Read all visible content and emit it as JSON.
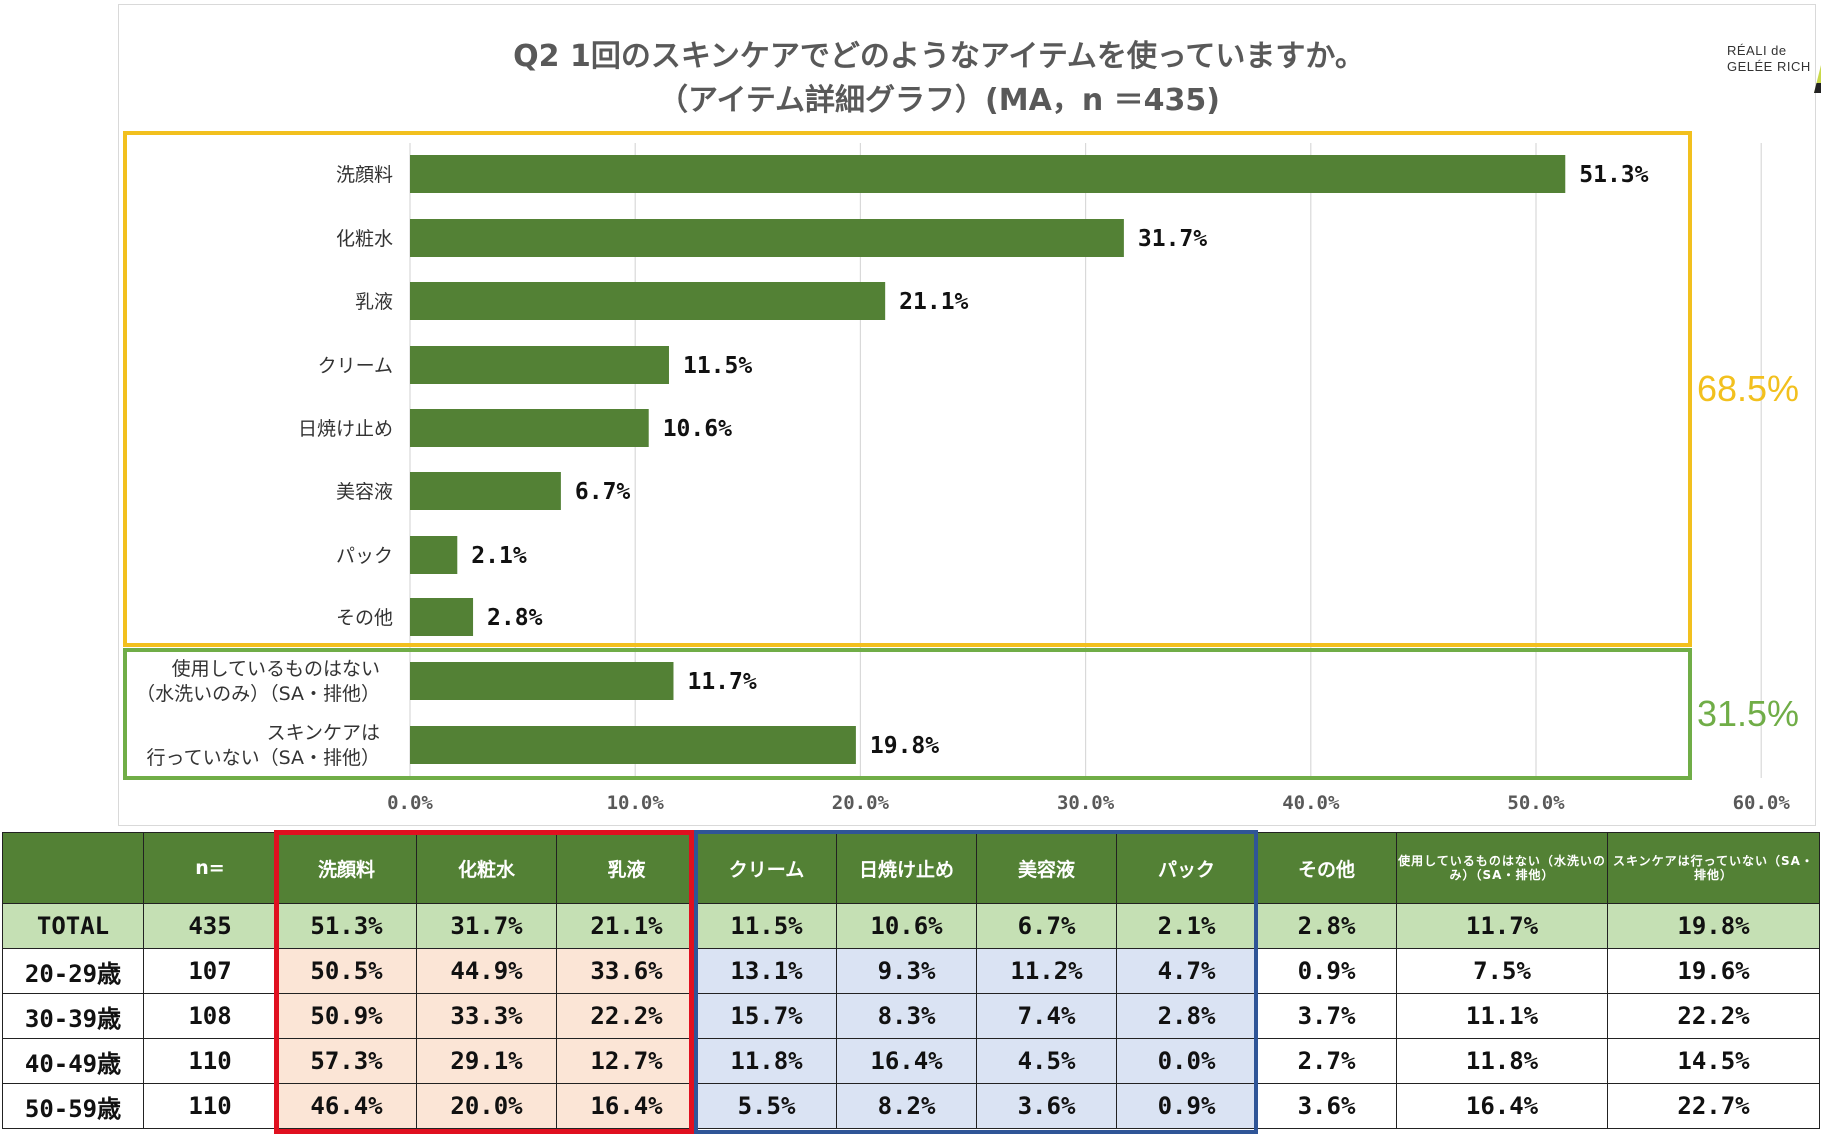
{
  "title": {
    "line1": "Q2 1回のスキンケアでどのようなアイテムを使っていますか。",
    "line2": "（アイテム詳細グラフ）(MA，n ＝435)"
  },
  "logo": {
    "line1": "RÉALI de",
    "line2": "GELÉE RICH"
  },
  "colors": {
    "bar": "#538135",
    "group_main": "#f2c01e",
    "group_none": "#70ad47",
    "header": "#538135",
    "total_row": "#c5e0b4",
    "red_box": "#e0101f",
    "blue_box": "#2f5597",
    "red_fill": "#fbe5d6",
    "blue_fill": "#dae3f3"
  },
  "chart_data": {
    "type": "bar",
    "orientation": "horizontal",
    "categories": [
      "洗顔料",
      "化粧水",
      "乳液",
      "クリーム",
      "日焼け止め",
      "美容液",
      "パック",
      "その他",
      "使用しているものはない|（水洗いのみ）（SA・排他）",
      "スキンケアは|行っていない（SA・排他）"
    ],
    "values": [
      51.3,
      31.7,
      21.1,
      11.5,
      10.6,
      6.7,
      2.1,
      2.8,
      11.7,
      19.8
    ],
    "value_labels": [
      "51.3%",
      "31.7%",
      "21.1%",
      "11.5%",
      "10.6%",
      "6.7%",
      "2.1%",
      "2.8%",
      "11.7%",
      "19.8%"
    ],
    "xlim": [
      0,
      60
    ],
    "xticks": [
      "0.0%",
      "10.0%",
      "20.0%",
      "30.0%",
      "40.0%",
      "50.0%",
      "60.0%"
    ],
    "grid": "vertical",
    "groups": [
      {
        "label": "68.5%",
        "from": 0,
        "to": 7,
        "color": "#f2c01e"
      },
      {
        "label": "31.5%",
        "from": 8,
        "to": 9,
        "color": "#70ad47"
      }
    ]
  },
  "table": {
    "headers": [
      "",
      "n=",
      "洗顔料",
      "化粧水",
      "乳液",
      "クリーム",
      "日焼け止め",
      "美容液",
      "パック",
      "その他",
      "使用しているものはない（水洗いのみ）（SA・排他）",
      "スキンケアは行っていない（SA・排他）"
    ],
    "rows": [
      [
        "TOTAL",
        "435",
        "51.3%",
        "31.7%",
        "21.1%",
        "11.5%",
        "10.6%",
        "6.7%",
        "2.1%",
        "2.8%",
        "11.7%",
        "19.8%"
      ],
      [
        "20-29歳",
        "107",
        "50.5%",
        "44.9%",
        "33.6%",
        "13.1%",
        "9.3%",
        "11.2%",
        "4.7%",
        "0.9%",
        "7.5%",
        "19.6%"
      ],
      [
        "30-39歳",
        "108",
        "50.9%",
        "33.3%",
        "22.2%",
        "15.7%",
        "8.3%",
        "7.4%",
        "2.8%",
        "3.7%",
        "11.1%",
        "22.2%"
      ],
      [
        "40-49歳",
        "110",
        "57.3%",
        "29.1%",
        "12.7%",
        "11.8%",
        "16.4%",
        "4.5%",
        "0.0%",
        "2.7%",
        "11.8%",
        "14.5%"
      ],
      [
        "50-59歳",
        "110",
        "46.4%",
        "20.0%",
        "16.4%",
        "5.5%",
        "8.2%",
        "3.6%",
        "0.9%",
        "3.6%",
        "16.4%",
        "22.7%"
      ]
    ]
  }
}
